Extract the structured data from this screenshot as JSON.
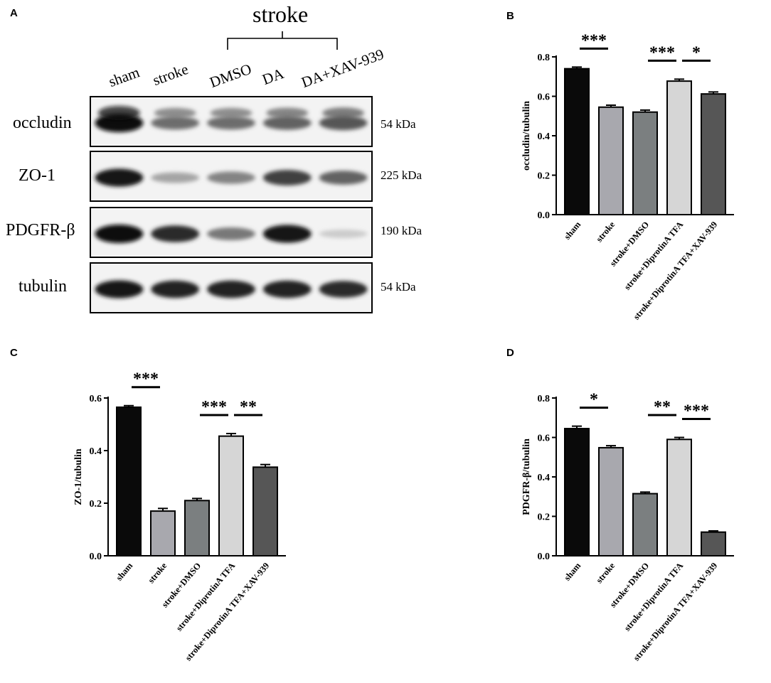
{
  "western_blot": {
    "panel_letter": "A",
    "group_label": "stroke",
    "lanes": [
      "sham",
      "stroke",
      "DMSO",
      "DA",
      "DA+XAV-939"
    ],
    "rows": [
      {
        "protein": "occludin",
        "size": "54 kDa",
        "intensity": [
          1.0,
          0.55,
          0.55,
          0.6,
          0.65
        ],
        "double": true
      },
      {
        "protein": "ZO-1",
        "size": "225 kDa",
        "intensity": [
          0.95,
          0.3,
          0.45,
          0.75,
          0.6
        ],
        "double": false
      },
      {
        "protein": "PDGFR-β",
        "size": "190 kDa",
        "intensity": [
          1.0,
          0.85,
          0.5,
          0.95,
          0.12
        ],
        "double": false
      },
      {
        "protein": "tubulin",
        "size": "54 kDa",
        "intensity": [
          0.95,
          0.9,
          0.9,
          0.9,
          0.85
        ],
        "double": false
      }
    ]
  },
  "bar_colors": [
    "#0a0a0a",
    "#a8a8ae",
    "#7b7f80",
    "#d6d6d6",
    "#565656"
  ],
  "chart_data": [
    {
      "panel_letter": "B",
      "type": "bar",
      "categories": [
        "sham",
        "stroke",
        "stroke+DMSO",
        "stroke+DiprotinA TFA",
        "stroke+DiprotinA TFA+XAV-939"
      ],
      "values": [
        0.74,
        0.545,
        0.52,
        0.677,
        0.612
      ],
      "errors": [
        0.008,
        0.01,
        0.01,
        0.01,
        0.01
      ],
      "ylabel": "occludin/tubulin",
      "ylim": [
        0,
        0.8
      ],
      "yticks": [
        "0.0",
        "0.2",
        "0.4",
        "0.6",
        "0.8"
      ],
      "significance": [
        {
          "from": 0,
          "to": 1,
          "label": "***"
        },
        {
          "from": 2,
          "to": 3,
          "label": "***"
        },
        {
          "from": 3,
          "to": 4,
          "label": "*"
        }
      ]
    },
    {
      "panel_letter": "C",
      "type": "bar",
      "categories": [
        "sham",
        "stroke",
        "stroke+DMSO",
        "stroke+DiprotinA TFA",
        "stroke+DiprotinA TFA+XAV-939"
      ],
      "values": [
        0.565,
        0.17,
        0.21,
        0.455,
        0.337
      ],
      "errors": [
        0.006,
        0.01,
        0.008,
        0.01,
        0.01
      ],
      "ylabel": "ZO-1/tubulin",
      "ylim": [
        0,
        0.6
      ],
      "yticks": [
        "0.0",
        "0.2",
        "0.4",
        "0.6"
      ],
      "significance": [
        {
          "from": 0,
          "to": 1,
          "label": "***"
        },
        {
          "from": 2,
          "to": 3,
          "label": "***"
        },
        {
          "from": 3,
          "to": 4,
          "label": "**"
        }
      ]
    },
    {
      "panel_letter": "D",
      "type": "bar",
      "categories": [
        "sham",
        "stroke",
        "stroke+DMSO",
        "stroke+DiprotinA TFA",
        "stroke+DiprotinA TFA+XAV-939"
      ],
      "values": [
        0.645,
        0.548,
        0.315,
        0.59,
        0.12
      ],
      "errors": [
        0.012,
        0.01,
        0.008,
        0.01,
        0.006
      ],
      "ylabel": "PDGFR-β/tubulin",
      "ylim": [
        0,
        0.8
      ],
      "yticks": [
        "0.0",
        "0.2",
        "0.4",
        "0.6",
        "0.8"
      ],
      "significance": [
        {
          "from": 0,
          "to": 1,
          "label": "*"
        },
        {
          "from": 2,
          "to": 3,
          "label": "**"
        },
        {
          "from": 3,
          "to": 4,
          "label": "***"
        }
      ]
    }
  ]
}
